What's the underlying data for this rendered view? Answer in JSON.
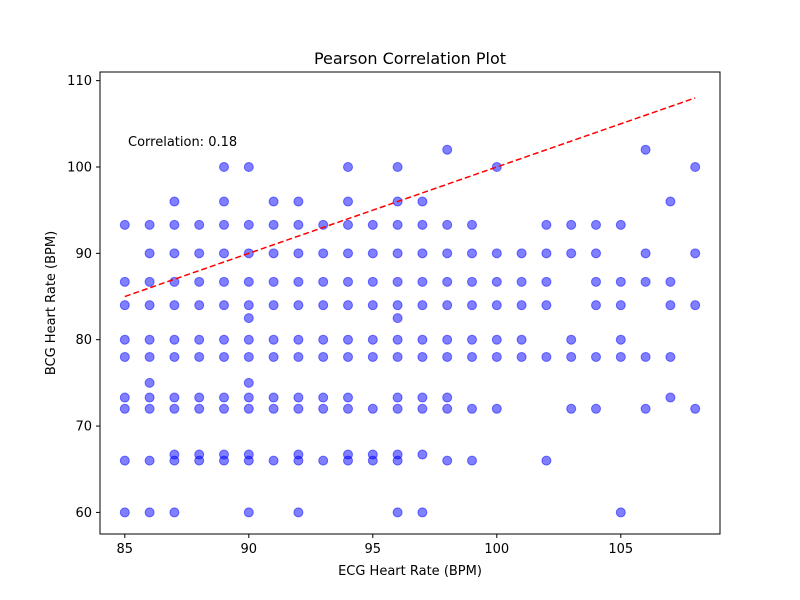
{
  "chart_data": {
    "type": "scatter",
    "title": "Pearson Correlation Plot",
    "xlabel": "ECG Heart Rate (BPM)",
    "ylabel": "BCG Heart Rate (BPM)",
    "xlim": [
      84,
      109
    ],
    "ylim": [
      57.5,
      111.0
    ],
    "xticks": [
      85,
      90,
      95,
      100,
      105
    ],
    "yticks": [
      60,
      70,
      80,
      90,
      100,
      110
    ],
    "annotation": "Correlation: 0.18",
    "point_color": "#0000ff",
    "line_color": "#ff0000",
    "fit_line": {
      "x": [
        85,
        108
      ],
      "y": [
        85,
        108
      ]
    },
    "points": [
      [
        85,
        93.3
      ],
      [
        85,
        86.7
      ],
      [
        85,
        84
      ],
      [
        85,
        80
      ],
      [
        85,
        78
      ],
      [
        85,
        73.3
      ],
      [
        85,
        72
      ],
      [
        85,
        66
      ],
      [
        85,
        60
      ],
      [
        86,
        93.3
      ],
      [
        86,
        90
      ],
      [
        86,
        86.7
      ],
      [
        86,
        84
      ],
      [
        86,
        80
      ],
      [
        86,
        78
      ],
      [
        86,
        75
      ],
      [
        86,
        73.3
      ],
      [
        86,
        72
      ],
      [
        86,
        66
      ],
      [
        86,
        60
      ],
      [
        87,
        96
      ],
      [
        87,
        93.3
      ],
      [
        87,
        90
      ],
      [
        87,
        86.7
      ],
      [
        87,
        84
      ],
      [
        87,
        80
      ],
      [
        87,
        78
      ],
      [
        87,
        73.3
      ],
      [
        87,
        72
      ],
      [
        87,
        66.7
      ],
      [
        87,
        66
      ],
      [
        87,
        60
      ],
      [
        88,
        93.3
      ],
      [
        88,
        90
      ],
      [
        88,
        86.7
      ],
      [
        88,
        84
      ],
      [
        88,
        80
      ],
      [
        88,
        78
      ],
      [
        88,
        73.3
      ],
      [
        88,
        72
      ],
      [
        88,
        66.7
      ],
      [
        88,
        66
      ],
      [
        89,
        100
      ],
      [
        89,
        96
      ],
      [
        89,
        93.3
      ],
      [
        89,
        90
      ],
      [
        89,
        86.7
      ],
      [
        89,
        84
      ],
      [
        89,
        80
      ],
      [
        89,
        78
      ],
      [
        89,
        73.3
      ],
      [
        89,
        72
      ],
      [
        89,
        66.7
      ],
      [
        89,
        66
      ],
      [
        90,
        100
      ],
      [
        90,
        93.3
      ],
      [
        90,
        90
      ],
      [
        90,
        86.7
      ],
      [
        90,
        84
      ],
      [
        90,
        82.5
      ],
      [
        90,
        80
      ],
      [
        90,
        78
      ],
      [
        90,
        75
      ],
      [
        90,
        73.3
      ],
      [
        90,
        72
      ],
      [
        90,
        66.7
      ],
      [
        90,
        66
      ],
      [
        90,
        60
      ],
      [
        91,
        96
      ],
      [
        91,
        93.3
      ],
      [
        91,
        90
      ],
      [
        91,
        86.7
      ],
      [
        91,
        84
      ],
      [
        91,
        80
      ],
      [
        91,
        78
      ],
      [
        91,
        73.3
      ],
      [
        91,
        72
      ],
      [
        91,
        66
      ],
      [
        92,
        96
      ],
      [
        92,
        93.3
      ],
      [
        92,
        90
      ],
      [
        92,
        86.7
      ],
      [
        92,
        84
      ],
      [
        92,
        80
      ],
      [
        92,
        78
      ],
      [
        92,
        73.3
      ],
      [
        92,
        72
      ],
      [
        92,
        66.7
      ],
      [
        92,
        66
      ],
      [
        92,
        60
      ],
      [
        93,
        93.3
      ],
      [
        93,
        90
      ],
      [
        93,
        86.7
      ],
      [
        93,
        84
      ],
      [
        93,
        80
      ],
      [
        93,
        78
      ],
      [
        93,
        73.3
      ],
      [
        93,
        72
      ],
      [
        93,
        66
      ],
      [
        94,
        100
      ],
      [
        94,
        96
      ],
      [
        94,
        93.3
      ],
      [
        94,
        90
      ],
      [
        94,
        86.7
      ],
      [
        94,
        84
      ],
      [
        94,
        80
      ],
      [
        94,
        78
      ],
      [
        94,
        73.3
      ],
      [
        94,
        72
      ],
      [
        94,
        66.7
      ],
      [
        94,
        66
      ],
      [
        95,
        93.3
      ],
      [
        95,
        90
      ],
      [
        95,
        86.7
      ],
      [
        95,
        84
      ],
      [
        95,
        80
      ],
      [
        95,
        78
      ],
      [
        95,
        72
      ],
      [
        95,
        66.7
      ],
      [
        95,
        66
      ],
      [
        96,
        100
      ],
      [
        96,
        96
      ],
      [
        96,
        93.3
      ],
      [
        96,
        90
      ],
      [
        96,
        86.7
      ],
      [
        96,
        84
      ],
      [
        96,
        82.5
      ],
      [
        96,
        80
      ],
      [
        96,
        78
      ],
      [
        96,
        73.3
      ],
      [
        96,
        72
      ],
      [
        96,
        66.7
      ],
      [
        96,
        66
      ],
      [
        96,
        60
      ],
      [
        97,
        96
      ],
      [
        97,
        93.3
      ],
      [
        97,
        90
      ],
      [
        97,
        86.7
      ],
      [
        97,
        84
      ],
      [
        97,
        80
      ],
      [
        97,
        78
      ],
      [
        97,
        73.3
      ],
      [
        97,
        72
      ],
      [
        97,
        66.7
      ],
      [
        97,
        60
      ],
      [
        98,
        102
      ],
      [
        98,
        93.3
      ],
      [
        98,
        90
      ],
      [
        98,
        86.7
      ],
      [
        98,
        84
      ],
      [
        98,
        80
      ],
      [
        98,
        78
      ],
      [
        98,
        73.3
      ],
      [
        98,
        72
      ],
      [
        98,
        66
      ],
      [
        99,
        93.3
      ],
      [
        99,
        90
      ],
      [
        99,
        86.7
      ],
      [
        99,
        84
      ],
      [
        99,
        80
      ],
      [
        99,
        78
      ],
      [
        99,
        72
      ],
      [
        99,
        66
      ],
      [
        100,
        100
      ],
      [
        100,
        90
      ],
      [
        100,
        86.7
      ],
      [
        100,
        84
      ],
      [
        100,
        80
      ],
      [
        100,
        78
      ],
      [
        100,
        72
      ],
      [
        101,
        90
      ],
      [
        101,
        86.7
      ],
      [
        101,
        84
      ],
      [
        101,
        80
      ],
      [
        101,
        78
      ],
      [
        102,
        93.3
      ],
      [
        102,
        90
      ],
      [
        102,
        86.7
      ],
      [
        102,
        84
      ],
      [
        102,
        78
      ],
      [
        102,
        66
      ],
      [
        103,
        93.3
      ],
      [
        103,
        90
      ],
      [
        103,
        80
      ],
      [
        103,
        78
      ],
      [
        103,
        72
      ],
      [
        104,
        93.3
      ],
      [
        104,
        90
      ],
      [
        104,
        86.7
      ],
      [
        104,
        84
      ],
      [
        104,
        78
      ],
      [
        104,
        72
      ],
      [
        105,
        93.3
      ],
      [
        105,
        86.7
      ],
      [
        105,
        84
      ],
      [
        105,
        80
      ],
      [
        105,
        78
      ],
      [
        105,
        60
      ],
      [
        106,
        102
      ],
      [
        106,
        90
      ],
      [
        106,
        86.7
      ],
      [
        106,
        78
      ],
      [
        106,
        72
      ],
      [
        107,
        96
      ],
      [
        107,
        86.7
      ],
      [
        107,
        84
      ],
      [
        107,
        78
      ],
      [
        107,
        73.3
      ],
      [
        108,
        100
      ],
      [
        108,
        90
      ],
      [
        108,
        84
      ],
      [
        108,
        72
      ]
    ]
  }
}
